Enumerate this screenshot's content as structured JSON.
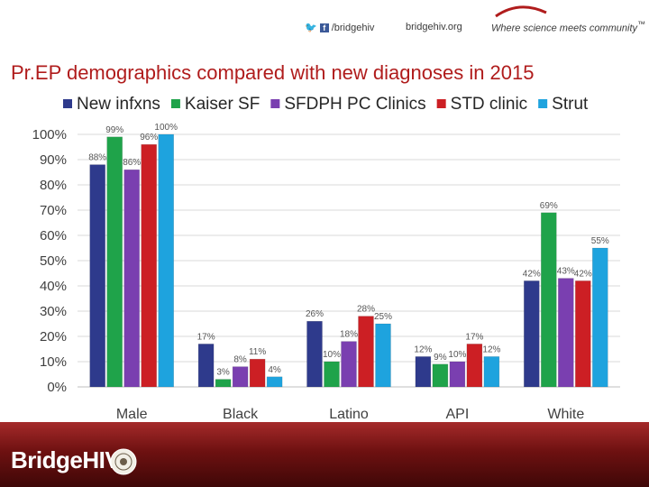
{
  "header": {
    "social_handle": "/bridgehiv",
    "website": "bridgehiv.org",
    "tagline": "Where science meets community",
    "tagline_mark": "™"
  },
  "page_title": "Pr.EP demographics compared with new diagnoses in 2015",
  "footer": {
    "brand_prefix": "Bridge",
    "brand_suffix": "HIV"
  },
  "colors": {
    "title": "#b01c1c",
    "new_infxns": "#2e3a8c",
    "kaiser": "#1fa34a",
    "sfdph": "#7a3fb0",
    "std": "#cc1f24",
    "strut": "#1ea3de"
  },
  "chart_data": {
    "type": "bar",
    "title": "",
    "xlabel": "",
    "ylabel": "",
    "ylim": [
      0,
      100
    ],
    "yticks": [
      "0%",
      "10%",
      "20%",
      "30%",
      "40%",
      "50%",
      "60%",
      "70%",
      "80%",
      "90%",
      "100%"
    ],
    "categories": [
      "Male",
      "Black",
      "Latino",
      "API",
      "White"
    ],
    "legend_position": "top",
    "series": [
      {
        "name": "New infxns",
        "color": "#2e3a8c",
        "values": [
          88,
          17,
          26,
          12,
          42
        ],
        "labels": [
          "88%",
          "17%",
          "26%",
          "12%",
          "42%"
        ]
      },
      {
        "name": "Kaiser SF",
        "color": "#1fa34a",
        "values": [
          99,
          3,
          10,
          9,
          69
        ],
        "labels": [
          "99%",
          "3%",
          "10%",
          "9%",
          "69%"
        ]
      },
      {
        "name": "SFDPH PC Clinics",
        "color": "#7a3fb0",
        "values": [
          86,
          8,
          18,
          10,
          43
        ],
        "labels": [
          "86%",
          "8%",
          "18%",
          "10%",
          "43%"
        ]
      },
      {
        "name": "STD clinic",
        "color": "#cc1f24",
        "values": [
          96,
          11,
          28,
          17,
          42
        ],
        "labels": [
          "96%",
          "11%",
          "28%",
          "17%",
          "42%"
        ]
      },
      {
        "name": "Strut",
        "color": "#1ea3de",
        "values": [
          100,
          4,
          25,
          12,
          55
        ],
        "labels": [
          "100%",
          "4%",
          "25%",
          "12%",
          "55%"
        ]
      }
    ]
  }
}
